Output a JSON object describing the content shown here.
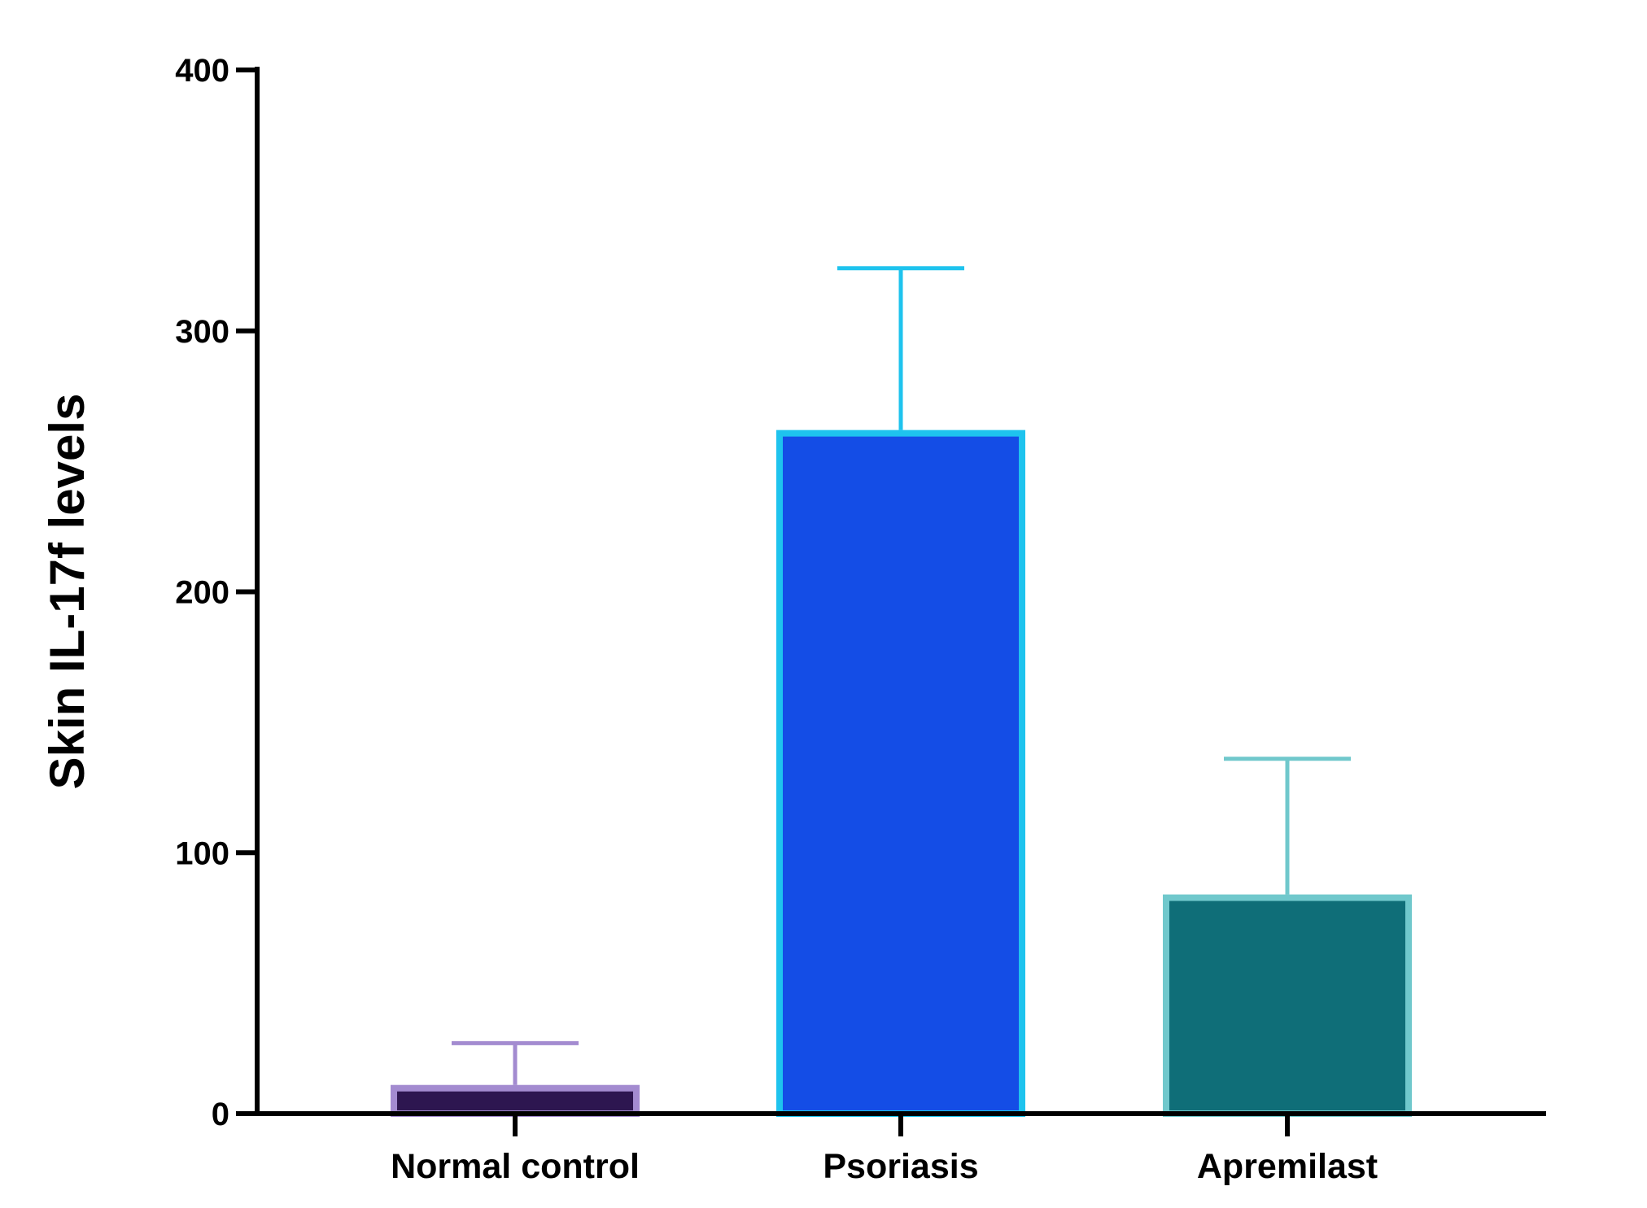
{
  "chart_data": {
    "type": "bar",
    "title": "",
    "xlabel": "",
    "ylabel": "Skin IL-17f levels",
    "ylim": [
      0,
      400
    ],
    "yticks": [
      0,
      100,
      200,
      300,
      400
    ],
    "grid": false,
    "categories": [
      "Normal control",
      "Psoriasis",
      "Apremilast"
    ],
    "values": [
      11,
      262,
      84
    ],
    "error_upper": [
      27,
      324,
      136
    ],
    "colors": {
      "fill": [
        "#2d1650",
        "#144de6",
        "#0f6e78"
      ],
      "edge": [
        "#a38bd0",
        "#1ec3ee",
        "#70c8cc"
      ]
    }
  }
}
